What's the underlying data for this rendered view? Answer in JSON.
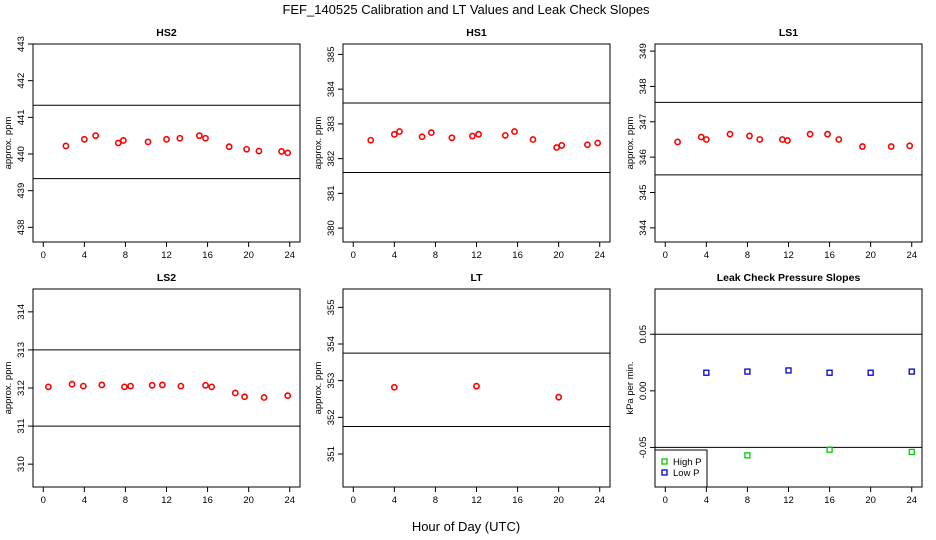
{
  "title": "FEF_140525  Calibration and LT Values and Leak Check Slopes",
  "xlabel": "Hour of Day (UTC)",
  "chart_data": [
    {
      "type": "scatter",
      "title": "HS2",
      "ylabel": "approx. ppm",
      "xlim": [
        -1,
        25
      ],
      "ylim": [
        437.6,
        443
      ],
      "xticks": [
        0,
        4,
        8,
        12,
        16,
        20,
        24
      ],
      "yticks": [
        438,
        439,
        440,
        441,
        442,
        443
      ],
      "hlines": [
        441.33,
        439.33
      ],
      "series": [
        {
          "color": "#ff0000",
          "x": [
            2.2,
            4.0,
            5.1,
            7.3,
            7.8,
            10.2,
            12.0,
            13.3,
            15.2,
            15.8,
            18.1,
            19.8,
            21.0,
            23.2,
            23.8
          ],
          "y": [
            440.22,
            440.4,
            440.5,
            440.3,
            440.37,
            440.33,
            440.4,
            440.43,
            440.5,
            440.43,
            440.2,
            440.13,
            440.08,
            440.07,
            440.03
          ]
        }
      ]
    },
    {
      "type": "scatter",
      "title": "HS1",
      "ylabel": "approx. ppm",
      "xlim": [
        -1,
        25
      ],
      "ylim": [
        379.6,
        385.3
      ],
      "xticks": [
        0,
        4,
        8,
        12,
        16,
        20,
        24
      ],
      "yticks": [
        380,
        381,
        382,
        383,
        384,
        385
      ],
      "hlines": [
        383.6,
        381.6
      ],
      "series": [
        {
          "color": "#ff0000",
          "x": [
            1.7,
            4.0,
            4.5,
            6.7,
            7.6,
            9.6,
            11.6,
            12.2,
            14.8,
            15.7,
            17.5,
            19.8,
            20.3,
            22.8,
            23.8
          ],
          "y": [
            382.53,
            382.7,
            382.78,
            382.63,
            382.75,
            382.6,
            382.65,
            382.7,
            382.67,
            382.78,
            382.55,
            382.32,
            382.38,
            382.4,
            382.45
          ]
        }
      ]
    },
    {
      "type": "scatter",
      "title": "LS1",
      "ylabel": "approx. ppm",
      "xlim": [
        -1,
        25
      ],
      "ylim": [
        343.6,
        349.2
      ],
      "xticks": [
        0,
        4,
        8,
        12,
        16,
        20,
        24
      ],
      "yticks": [
        344,
        345,
        346,
        347,
        348,
        349
      ],
      "hlines": [
        347.55,
        345.5
      ],
      "series": [
        {
          "color": "#ff0000",
          "x": [
            1.2,
            3.5,
            4.0,
            6.3,
            8.2,
            9.2,
            11.4,
            11.9,
            14.1,
            15.8,
            16.9,
            19.2,
            22.0,
            23.8
          ],
          "y": [
            346.43,
            346.57,
            346.5,
            346.65,
            346.6,
            346.5,
            346.5,
            346.47,
            346.65,
            346.65,
            346.5,
            346.3,
            346.3,
            346.32
          ]
        }
      ]
    },
    {
      "type": "scatter",
      "title": "LS2",
      "ylabel": "approx. ppm",
      "xlim": [
        -1,
        25
      ],
      "ylim": [
        309.4,
        314.6
      ],
      "xticks": [
        0,
        4,
        8,
        12,
        16,
        20,
        24
      ],
      "yticks": [
        310,
        311,
        312,
        313,
        314
      ],
      "hlines": [
        313.0,
        311.0
      ],
      "series": [
        {
          "color": "#ff0000",
          "x": [
            0.5,
            2.8,
            3.9,
            5.7,
            7.9,
            8.5,
            10.6,
            11.6,
            13.4,
            15.8,
            16.4,
            18.7,
            19.6,
            21.5,
            23.8
          ],
          "y": [
            312.03,
            312.1,
            312.05,
            312.08,
            312.03,
            312.05,
            312.07,
            312.08,
            312.05,
            312.07,
            312.03,
            311.87,
            311.77,
            311.75,
            311.8
          ]
        }
      ]
    },
    {
      "type": "scatter",
      "title": "LT",
      "ylabel": "approx. ppm",
      "xlim": [
        -1,
        25
      ],
      "ylim": [
        350.1,
        355.5
      ],
      "xticks": [
        0,
        4,
        8,
        12,
        16,
        20,
        24
      ],
      "yticks": [
        351,
        352,
        353,
        354,
        355
      ],
      "hlines": [
        353.75,
        351.75
      ],
      "series": [
        {
          "color": "#ff0000",
          "x": [
            4.0,
            12.0,
            20.0
          ],
          "y": [
            352.82,
            352.85,
            352.55
          ]
        }
      ]
    },
    {
      "type": "scatter",
      "title": "Leak Check Pressure Slopes",
      "ylabel": "kPa per min.",
      "xlim": [
        -1,
        25
      ],
      "ylim": [
        -0.085,
        0.09
      ],
      "xticks": [
        0,
        4,
        8,
        12,
        16,
        20,
        24
      ],
      "yticks": [
        -0.05,
        0.0,
        0.05
      ],
      "ytick_labels": [
        "-0.05",
        "0.00",
        "0.05"
      ],
      "hlines": [
        0.05,
        -0.05
      ],
      "legend": "bottom-left",
      "series": [
        {
          "name": "High P",
          "color": "#00cc00",
          "x": [
            8,
            16,
            24
          ],
          "y": [
            -0.057,
            -0.052,
            -0.054
          ]
        },
        {
          "name": "Low P",
          "color": "#0000cc",
          "x": [
            4,
            8,
            12,
            16,
            20,
            24
          ],
          "y": [
            0.016,
            0.017,
            0.018,
            0.016,
            0.016,
            0.017
          ]
        }
      ]
    }
  ]
}
